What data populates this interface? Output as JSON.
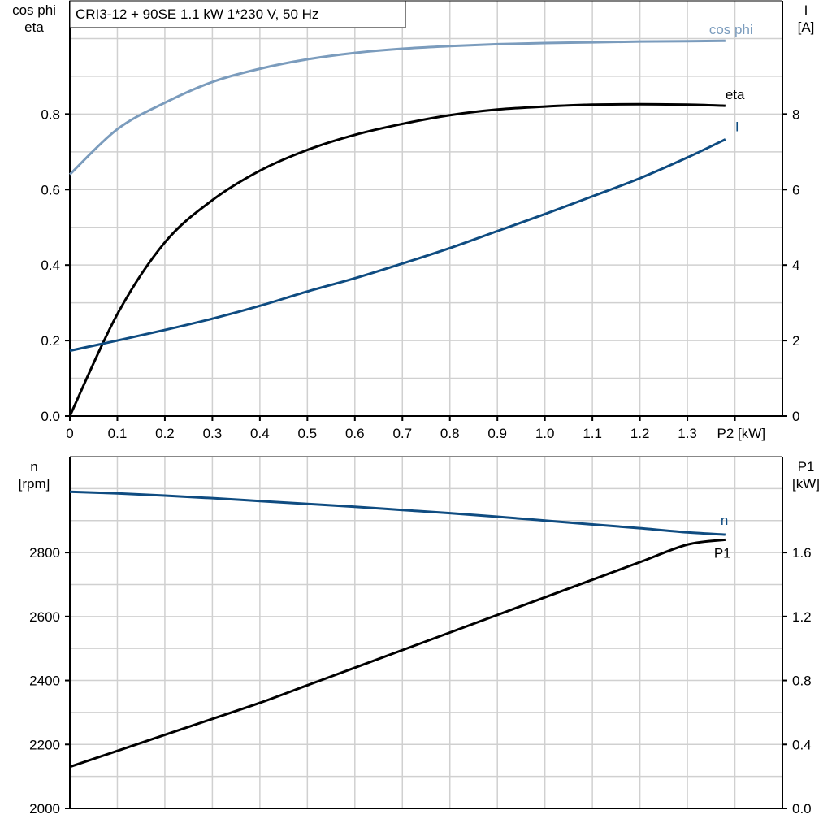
{
  "chart_data": [
    {
      "type": "line",
      "title": "CRI3-12 + 90SE   1.1 kW   1*230 V, 50 Hz",
      "xlabel": "P2 [kW]",
      "ylabel_left": [
        "cos phi",
        "eta"
      ],
      "ylabel_right": [
        "I",
        "[A]"
      ],
      "xlim": [
        0,
        1.5
      ],
      "ylim_left": [
        0,
        1.1
      ],
      "ylim_right": [
        0,
        11
      ],
      "x_ticks": [
        "0",
        "0.1",
        "0.2",
        "0.3",
        "0.4",
        "0.5",
        "0.6",
        "0.7",
        "0.8",
        "0.9",
        "1.0",
        "1.1",
        "1.2",
        "1.3"
      ],
      "y_ticks_left": [
        "0.0",
        "0.2",
        "0.4",
        "0.6",
        "0.8"
      ],
      "y_ticks_right": [
        "0",
        "2",
        "4",
        "6",
        "8"
      ],
      "grid": true,
      "x": [
        0,
        0.1,
        0.2,
        0.3,
        0.4,
        0.5,
        0.6,
        0.7,
        0.8,
        0.9,
        1.0,
        1.1,
        1.2,
        1.3,
        1.38
      ],
      "series": [
        {
          "name": "cos phi",
          "axis": "left",
          "color": "#7b9cbd",
          "values": [
            0.64,
            0.76,
            0.83,
            0.885,
            0.92,
            0.945,
            0.962,
            0.973,
            0.98,
            0.985,
            0.988,
            0.99,
            0.992,
            0.993,
            0.994
          ]
        },
        {
          "name": "eta",
          "axis": "left",
          "color": "#000000",
          "values": [
            0.0,
            0.27,
            0.46,
            0.572,
            0.65,
            0.705,
            0.745,
            0.774,
            0.797,
            0.812,
            0.82,
            0.825,
            0.826,
            0.825,
            0.822
          ]
        },
        {
          "name": "I",
          "axis": "right",
          "color": "#0f4c81",
          "values": [
            1.73,
            2.0,
            2.28,
            2.58,
            2.92,
            3.3,
            3.65,
            4.04,
            4.45,
            4.9,
            5.35,
            5.82,
            6.3,
            6.85,
            7.33
          ]
        }
      ]
    },
    {
      "type": "line",
      "ylabel_left": [
        "n",
        "[rpm]"
      ],
      "ylabel_right": [
        "P1",
        "[kW]"
      ],
      "xlim": [
        0,
        1.5
      ],
      "ylim_left": [
        2000,
        3100
      ],
      "ylim_right": [
        0,
        2.2
      ],
      "y_ticks_left": [
        "2000",
        "2200",
        "2400",
        "2600",
        "2800"
      ],
      "y_ticks_right": [
        "0.0",
        "0.4",
        "0.8",
        "1.2",
        "1.6"
      ],
      "grid": true,
      "x": [
        0,
        0.1,
        0.2,
        0.3,
        0.4,
        0.5,
        0.6,
        0.7,
        0.8,
        0.9,
        1.0,
        1.1,
        1.2,
        1.3,
        1.38
      ],
      "series": [
        {
          "name": "n",
          "axis": "left",
          "color": "#0f4c81",
          "values": [
            2990,
            2985,
            2978,
            2970,
            2961,
            2952,
            2943,
            2933,
            2923,
            2912,
            2900,
            2888,
            2876,
            2863,
            2856
          ]
        },
        {
          "name": "P1",
          "axis": "right",
          "color": "#000000",
          "values": [
            0.26,
            0.36,
            0.46,
            0.56,
            0.66,
            0.77,
            0.88,
            0.99,
            1.1,
            1.21,
            1.32,
            1.43,
            1.54,
            1.65,
            1.68
          ]
        }
      ]
    }
  ]
}
